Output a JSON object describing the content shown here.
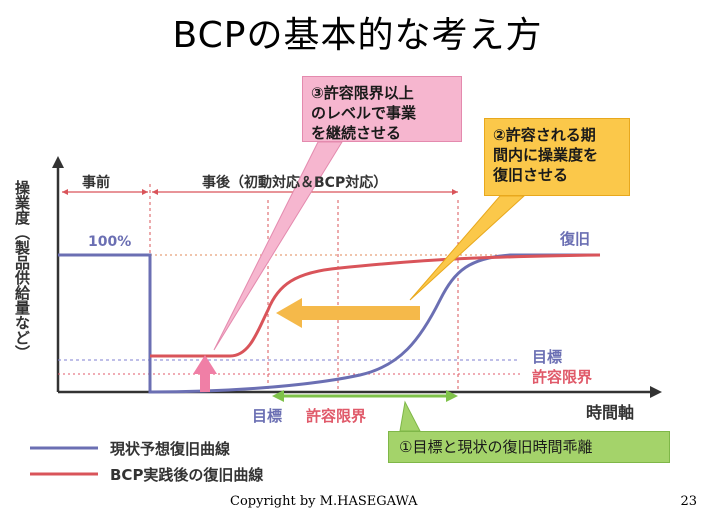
{
  "slide": {
    "title": "BCPの基本的な考え方",
    "copyright": "Copyright by M.HASEGAWA",
    "page_number": "23"
  },
  "diagram": {
    "y_axis_label": "操業度（製品供給量など）",
    "x_axis_label": "時間軸",
    "phase_before": "事前",
    "phase_after": "事後（初動対応＆BCP対応）",
    "level_100": "100%",
    "level_recovery": "復旧",
    "level_target": "目標",
    "level_tolerance": "許容限界",
    "time_target": "目標",
    "time_tolerance": "許容限界",
    "callout_1": "①目標と現状の復旧時間乖離",
    "callout_2": [
      "②許容される期",
      "間内に操業度を",
      "復旧させる"
    ],
    "callout_3": [
      "③許容限界以上",
      "のレベルで事業",
      "を継続させる"
    ],
    "legend_current": "現状予想復旧曲線",
    "legend_bcp": "BCP実践後の復旧曲線"
  },
  "colors": {
    "current_curve": "#6b6fb3",
    "bcp_curve": "#d9545a",
    "pink_arrow": "#f07fa6",
    "orange_arrow": "#f5b94a",
    "green_arrow": "#7fc24a",
    "recovery_line": "#7f7fd1",
    "target_line": "#7f7fd1",
    "tolerance_line": "#e05a6a"
  }
}
